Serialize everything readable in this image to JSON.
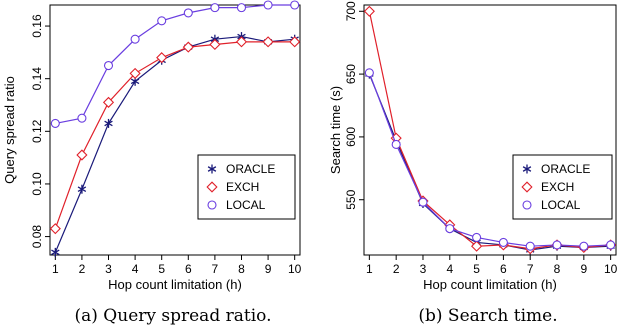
{
  "chart_data": [
    {
      "type": "line",
      "caption": "(a) Query spread ratio.",
      "xlabel": "Hop count limitation (h)",
      "ylabel": "Query spread ratio",
      "x": [
        1,
        2,
        3,
        4,
        5,
        6,
        7,
        8,
        9,
        10
      ],
      "xticks": [
        "1",
        "2",
        "3",
        "4",
        "5",
        "6",
        "7",
        "8",
        "9",
        "10"
      ],
      "xlim": [
        0.8,
        10.2
      ],
      "ylim": [
        0.073,
        0.168
      ],
      "yticks": [
        "0.08",
        "0.10",
        "0.12",
        "0.14",
        "0.16"
      ],
      "ytick_values": [
        0.08,
        0.1,
        0.12,
        0.14,
        0.16
      ],
      "legend_position": "center-right",
      "series": [
        {
          "name": "ORACLE",
          "marker": "asterisk",
          "color": "#1a1a7a",
          "values": [
            0.074,
            0.098,
            0.123,
            0.139,
            0.147,
            0.152,
            0.155,
            0.156,
            0.154,
            0.155
          ]
        },
        {
          "name": "EXCH",
          "marker": "diamond",
          "color": "#e0202a",
          "values": [
            0.083,
            0.111,
            0.131,
            0.142,
            0.148,
            0.152,
            0.153,
            0.154,
            0.154,
            0.154
          ]
        },
        {
          "name": "LOCAL",
          "marker": "circle",
          "color": "#6a3ee0",
          "values": [
            0.123,
            0.125,
            0.145,
            0.155,
            0.162,
            0.165,
            0.167,
            0.167,
            0.168,
            0.168
          ]
        }
      ]
    },
    {
      "type": "line",
      "caption": "(b) Search time.",
      "xlabel": "Hop count limitation (h)",
      "ylabel": "Search time (s)",
      "x": [
        1,
        2,
        3,
        4,
        5,
        6,
        7,
        8,
        9,
        10
      ],
      "xticks": [
        "1",
        "2",
        "3",
        "4",
        "5",
        "6",
        "7",
        "8",
        "9",
        "10"
      ],
      "xlim": [
        0.8,
        10.2
      ],
      "ylim": [
        506,
        705
      ],
      "yticks": [
        "550",
        "600",
        "650",
        "700"
      ],
      "ytick_values": [
        550,
        600,
        650,
        700
      ],
      "legend_position": "center-right",
      "series": [
        {
          "name": "ORACLE",
          "marker": "asterisk",
          "color": "#1a1a7a",
          "values": [
            650,
            597,
            547,
            527,
            516,
            514,
            510,
            513,
            512,
            513
          ]
        },
        {
          "name": "EXCH",
          "marker": "diamond",
          "color": "#e0202a",
          "values": [
            700,
            599,
            549,
            530,
            513,
            514,
            511,
            514,
            512,
            514
          ]
        },
        {
          "name": "LOCAL",
          "marker": "circle",
          "color": "#6a3ee0",
          "values": [
            651,
            594,
            548,
            527,
            520,
            516,
            513,
            514,
            513,
            514
          ]
        }
      ]
    }
  ]
}
